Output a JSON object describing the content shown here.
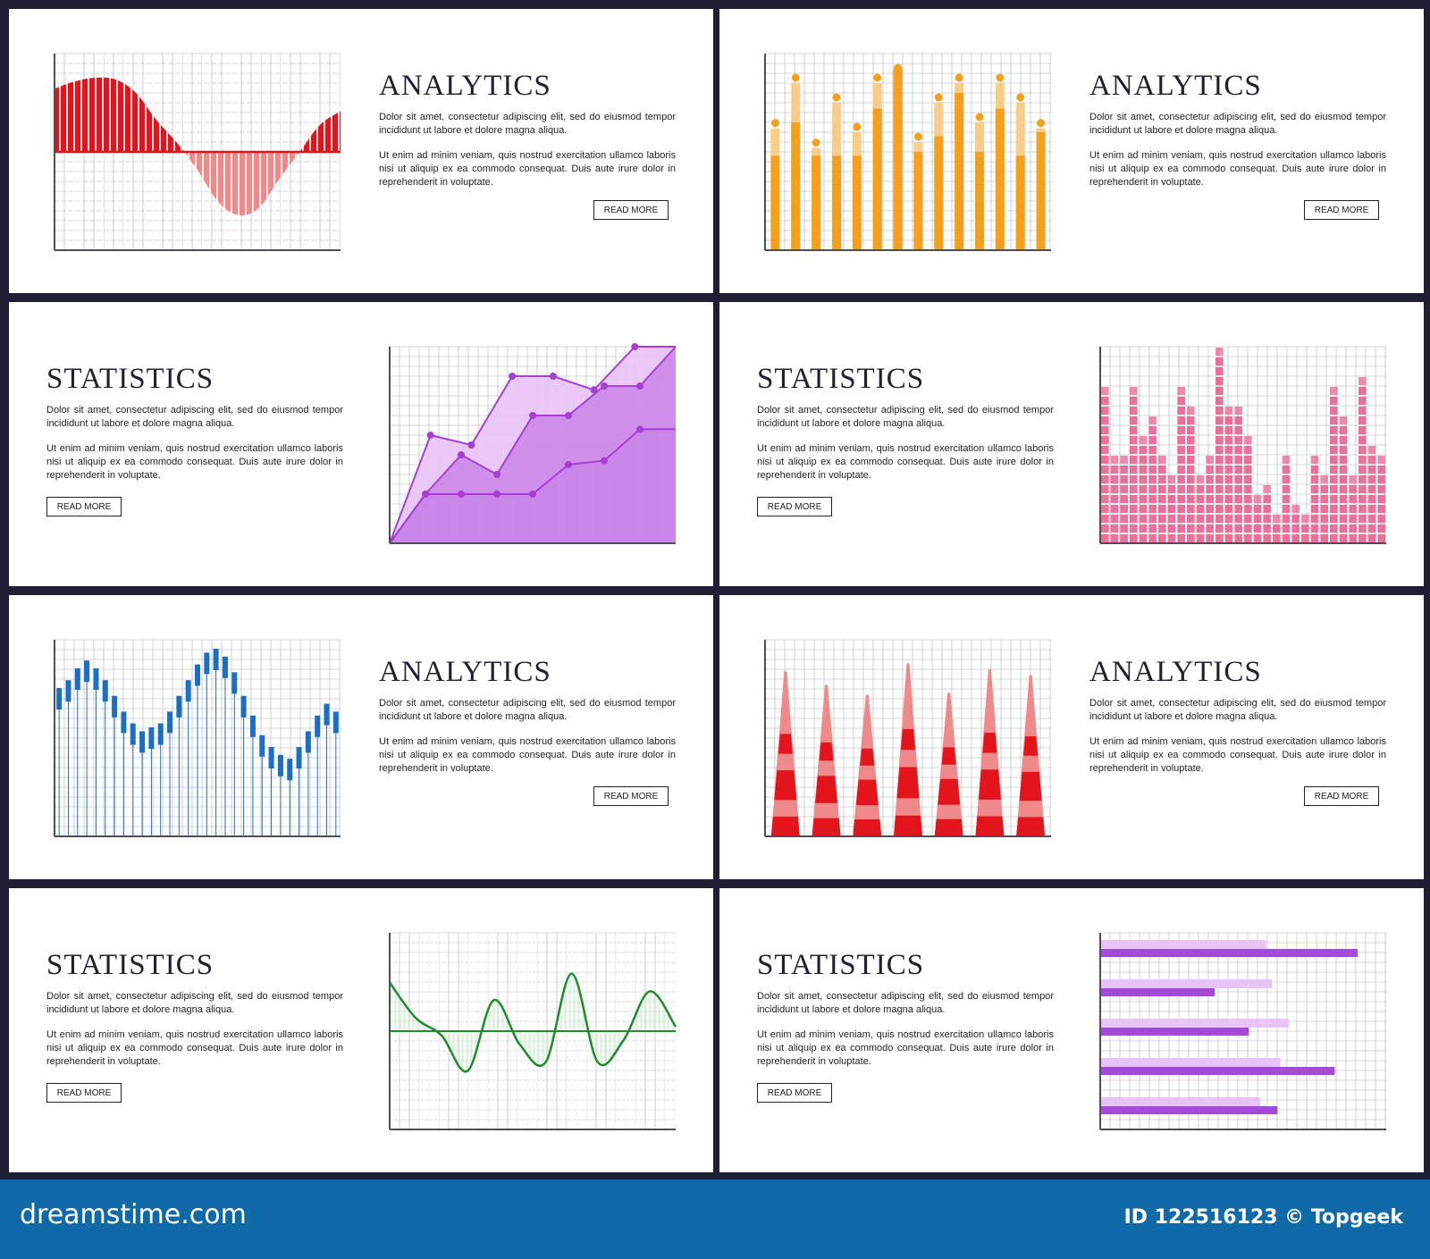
{
  "copy": {
    "p1": "Dolor sit amet, consectetur adipiscing elit, sed do eiusmod tempor incididunt ut labore et dolore magna aliqua.",
    "p2": "Ut enim ad minim veniam, quis nostrud exercitation ullamco laboris nisi ut aliquip ex ea commodo consequat. Duis aute irure dolor in reprehenderit in voluptate.",
    "button": "READ MORE"
  },
  "cards": [
    {
      "title": "ANALYTICS"
    },
    {
      "title": "ANALYTICS"
    },
    {
      "title": "STATISTICS"
    },
    {
      "title": "STATISTICS"
    },
    {
      "title": "ANALYTICS"
    },
    {
      "title": "ANALYTICS"
    },
    {
      "title": "STATISTICS"
    },
    {
      "title": "STATISTICS"
    }
  ],
  "footer": {
    "brand": "dreamstime.com",
    "id_text": "ID 122516123 © Topgeek"
  },
  "colors": {
    "red": "#e3141b",
    "pink_light": "#f08a8a",
    "orange": "#f5a01c",
    "orange_light": "#f9cd88",
    "purple": "#b95ee0",
    "purple_light": "#e8c3f5",
    "pink": "#e8588a",
    "blue": "#1a6fc4",
    "green": "#1d8d2c",
    "violet": "#a649d8",
    "footer": "#116aa8",
    "grid": "#aeb0b4"
  },
  "chart_data": [
    {
      "type": "area",
      "series": [
        {
          "values": [
            0.7,
            0.78,
            0.82,
            0.8,
            0.65,
            0.35,
            0.1,
            -0.2,
            -0.55,
            -0.7,
            -0.62,
            -0.3,
            0.0,
            0.3,
            0.45
          ]
        }
      ],
      "ylim": [
        -1,
        1
      ]
    },
    {
      "type": "bar",
      "series": [
        {
          "values": [
            0.48,
            0.65,
            0.48,
            0.48,
            0.48,
            0.72,
            0.92,
            0.5,
            0.58,
            0.8,
            0.5,
            0.72,
            0.48,
            0.6
          ]
        },
        {
          "values": [
            0.62,
            0.85,
            0.52,
            0.75,
            0.6,
            0.85,
            0.9,
            0.55,
            0.75,
            0.85,
            0.65,
            0.85,
            0.75,
            0.62
          ]
        },
        {
          "values": [
            0.62,
            0.85,
            0.52,
            0.75,
            0.6,
            0.85,
            0.9,
            0.55,
            0.75,
            0.85,
            0.65,
            0.85,
            0.75,
            0.62
          ]
        }
      ],
      "ylim": [
        0,
        1
      ]
    },
    {
      "type": "line",
      "series": [
        {
          "values": [
            0,
            0.55,
            0.5,
            0.85,
            0.85,
            0.78,
            1.0,
            1.0
          ]
        },
        {
          "values": [
            0,
            0.25,
            0.45,
            0.35,
            0.65,
            0.65,
            0.8,
            0.8,
            1.0
          ]
        },
        {
          "values": [
            0,
            0.25,
            0.25,
            0.25,
            0.25,
            0.4,
            0.42,
            0.58,
            0.58
          ]
        }
      ],
      "ylim": [
        0,
        1
      ]
    },
    {
      "type": "bar",
      "values": [
        0.78,
        0.45,
        0.45,
        0.78,
        0.55,
        0.65,
        0.45,
        0.35,
        0.8,
        0.7,
        0.35,
        0.45,
        0.98,
        0.72,
        0.7,
        0.55,
        0.25,
        0.3,
        0.15,
        0.45,
        0.2,
        0.15,
        0.45,
        0.35,
        0.78,
        0.65,
        0.35,
        0.85,
        0.5,
        0.45
      ],
      "ylim": [
        0,
        1
      ]
    },
    {
      "type": "bar",
      "values": [
        0.7,
        0.74,
        0.8,
        0.84,
        0.8,
        0.74,
        0.66,
        0.58,
        0.52,
        0.48,
        0.5,
        0.52,
        0.58,
        0.66,
        0.74,
        0.82,
        0.88,
        0.9,
        0.86,
        0.78,
        0.66,
        0.56,
        0.46,
        0.4,
        0.36,
        0.34,
        0.4,
        0.48,
        0.56,
        0.62,
        0.58
      ],
      "ylim": [
        0,
        1
      ]
    },
    {
      "type": "bar",
      "values": [
        0.84,
        0.77,
        0.72,
        0.88,
        0.73,
        0.85,
        0.82
      ],
      "ylim": [
        0,
        1
      ]
    },
    {
      "type": "line",
      "series": [
        {
          "values": [
            0.55,
            0.15,
            -0.05,
            -0.45,
            0.35,
            -0.15,
            -0.35,
            0.65,
            -0.35,
            -0.1,
            0.45,
            0.05
          ]
        }
      ],
      "ylim": [
        -1,
        1
      ]
    },
    {
      "type": "bar",
      "series": [
        {
          "values": [
            0.9,
            0.4,
            0.52,
            0.82,
            0.62
          ]
        },
        {
          "values": [
            0.58,
            0.6,
            0.66,
            0.63,
            0.56
          ]
        }
      ],
      "xlim": [
        0,
        1
      ]
    }
  ]
}
